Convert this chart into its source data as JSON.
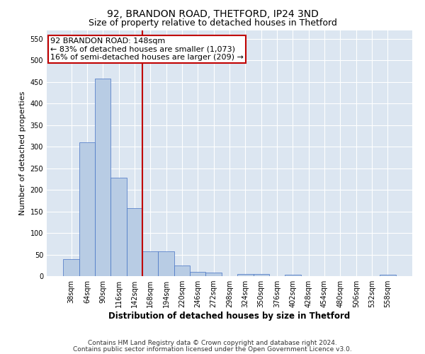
{
  "title": "92, BRANDON ROAD, THETFORD, IP24 3ND",
  "subtitle": "Size of property relative to detached houses in Thetford",
  "xlabel": "Distribution of detached houses by size in Thetford",
  "ylabel": "Number of detached properties",
  "bar_labels": [
    "38sqm",
    "64sqm",
    "90sqm",
    "116sqm",
    "142sqm",
    "168sqm",
    "194sqm",
    "220sqm",
    "246sqm",
    "272sqm",
    "298sqm",
    "324sqm",
    "350sqm",
    "376sqm",
    "402sqm",
    "428sqm",
    "454sqm",
    "480sqm",
    "506sqm",
    "532sqm",
    "558sqm"
  ],
  "bar_values": [
    40,
    310,
    457,
    228,
    158,
    57,
    57,
    25,
    10,
    8,
    0,
    5,
    5,
    0,
    3,
    0,
    0,
    0,
    0,
    0,
    3
  ],
  "bar_color": "#b8cce4",
  "bar_edge_color": "#4472c4",
  "vline_color": "#c00000",
  "annotation_text": "92 BRANDON ROAD: 148sqm\n← 83% of detached houses are smaller (1,073)\n16% of semi-detached houses are larger (209) →",
  "annotation_box_color": "#ffffff",
  "annotation_box_edge_color": "#c00000",
  "ylim": [
    0,
    570
  ],
  "yticks": [
    0,
    50,
    100,
    150,
    200,
    250,
    300,
    350,
    400,
    450,
    500,
    550
  ],
  "plot_bg_color": "#dce6f1",
  "footer_line1": "Contains HM Land Registry data © Crown copyright and database right 2024.",
  "footer_line2": "Contains public sector information licensed under the Open Government Licence v3.0.",
  "title_fontsize": 10,
  "subtitle_fontsize": 9,
  "xlabel_fontsize": 8.5,
  "ylabel_fontsize": 8,
  "tick_fontsize": 7,
  "annotation_fontsize": 8,
  "footer_fontsize": 6.5
}
